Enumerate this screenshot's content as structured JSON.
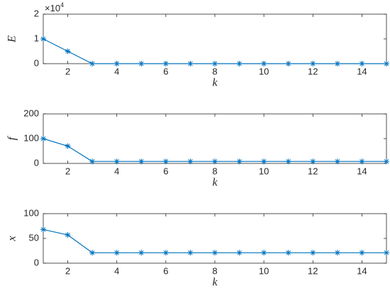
{
  "chart_data": [
    {
      "type": "line",
      "xlabel": "k",
      "ylabel": "E",
      "x": [
        1,
        2,
        3,
        4,
        5,
        6,
        7,
        8,
        9,
        10,
        11,
        12,
        13,
        14,
        15
      ],
      "values": [
        10000,
        5000,
        0,
        0,
        0,
        0,
        0,
        0,
        0,
        0,
        0,
        0,
        0,
        0,
        0
      ],
      "color": "#0072bd",
      "xlim": [
        1,
        15
      ],
      "xticks": [
        2,
        4,
        6,
        8,
        10,
        12,
        14
      ],
      "ylim": [
        0,
        20000
      ],
      "yticks": [
        {
          "value": 0,
          "label": "0"
        },
        {
          "value": 10000,
          "label": "1"
        },
        {
          "value": 20000,
          "label": "2"
        }
      ],
      "axis_multiplier": {
        "base": "×10",
        "exponent": "4"
      }
    },
    {
      "type": "line",
      "xlabel": "k",
      "ylabel": "f",
      "x": [
        1,
        2,
        3,
        4,
        5,
        6,
        7,
        8,
        9,
        10,
        11,
        12,
        13,
        14,
        15
      ],
      "values": [
        100,
        70,
        8,
        8,
        8,
        8,
        8,
        8,
        8,
        8,
        8,
        8,
        8,
        8,
        8
      ],
      "color": "#0072bd",
      "xlim": [
        1,
        15
      ],
      "xticks": [
        2,
        4,
        6,
        8,
        10,
        12,
        14
      ],
      "ylim": [
        0,
        200
      ],
      "yticks": [
        0,
        100,
        200
      ]
    },
    {
      "type": "line",
      "xlabel": "k",
      "ylabel": "x",
      "x": [
        1,
        2,
        3,
        4,
        5,
        6,
        7,
        8,
        9,
        10,
        11,
        12,
        13,
        14,
        15
      ],
      "values": [
        68,
        57,
        21,
        21,
        21,
        21,
        21,
        21,
        21,
        21,
        21,
        21,
        21,
        21,
        21
      ],
      "color": "#0072bd",
      "xlim": [
        1,
        15
      ],
      "xticks": [
        2,
        4,
        6,
        8,
        10,
        12,
        14
      ],
      "ylim": [
        0,
        100
      ],
      "yticks": [
        0,
        50,
        100
      ]
    }
  ]
}
